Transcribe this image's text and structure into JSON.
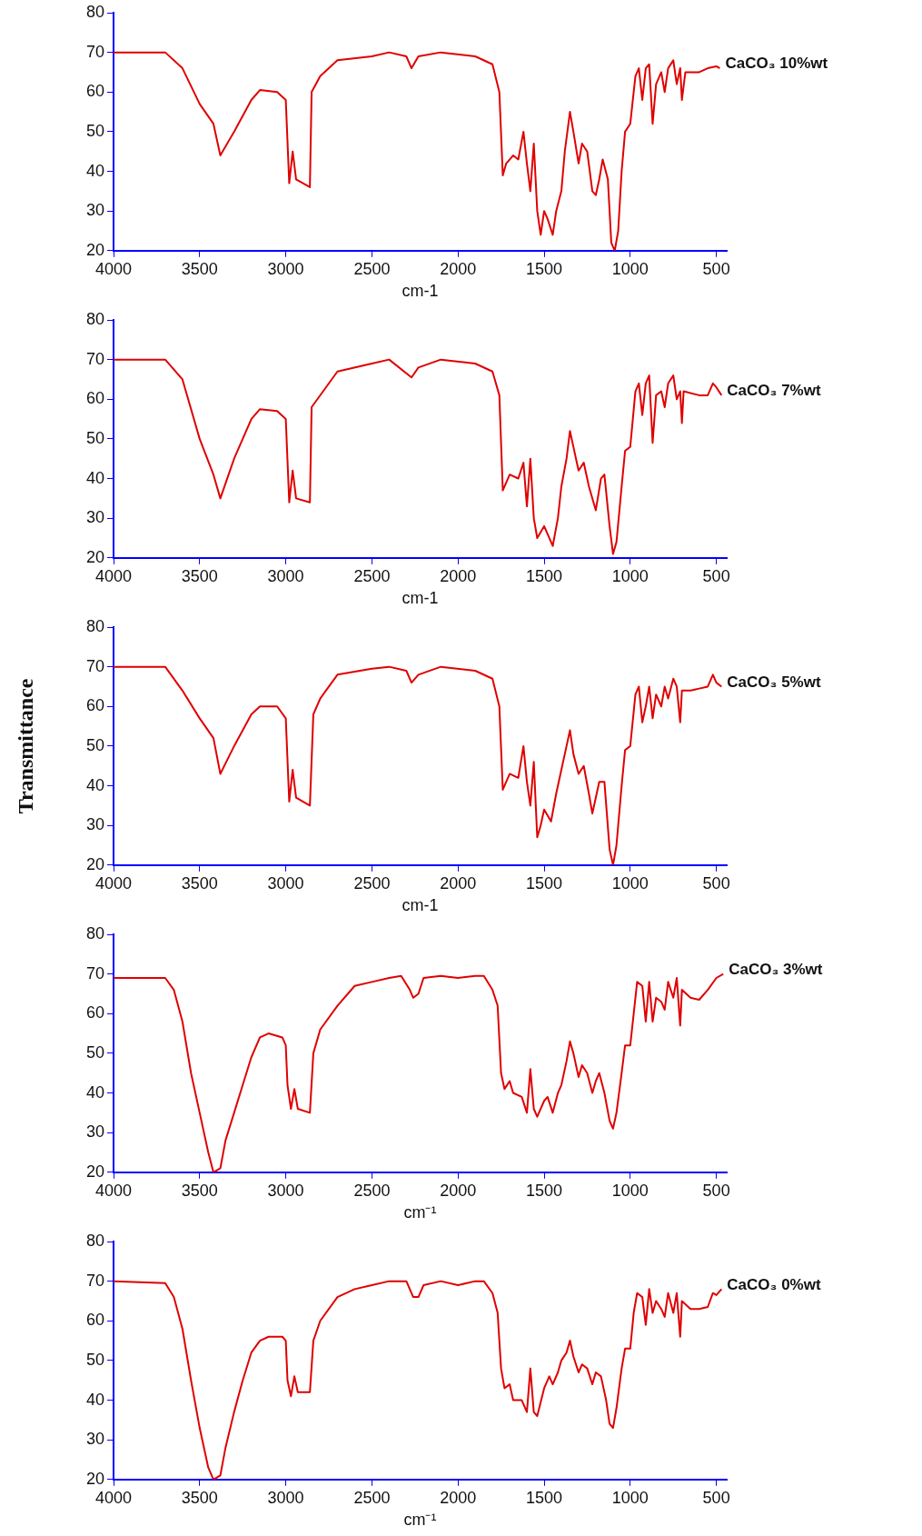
{
  "chart_data": [
    {
      "type": "line",
      "xlabel": "cm-1",
      "xlim": [
        4000,
        440
      ],
      "xticks": [
        4000,
        3500,
        3000,
        2500,
        2000,
        1500,
        1000,
        500
      ],
      "ylim": [
        20,
        80
      ],
      "yticks": [
        20,
        30,
        40,
        50,
        60,
        70,
        80
      ],
      "grid": false,
      "series": [
        {
          "name": "CaCO₃ 10%wt",
          "color": "#e00000",
          "x": [
            4000,
            3700,
            3600,
            3500,
            3420,
            3380,
            3300,
            3200,
            3150,
            3050,
            3000,
            2980,
            2960,
            2940,
            2900,
            2860,
            2850,
            2800,
            2700,
            2500,
            2400,
            2300,
            2270,
            2230,
            2100,
            1900,
            1800,
            1760,
            1740,
            1720,
            1680,
            1650,
            1620,
            1600,
            1580,
            1560,
            1540,
            1520,
            1500,
            1480,
            1450,
            1430,
            1400,
            1380,
            1350,
            1330,
            1300,
            1280,
            1250,
            1220,
            1200,
            1180,
            1160,
            1130,
            1110,
            1090,
            1070,
            1050,
            1030,
            1000,
            970,
            950,
            930,
            910,
            890,
            870,
            850,
            820,
            800,
            780,
            750,
            730,
            710,
            700,
            680,
            600,
            550,
            500,
            480
          ],
          "values": [
            70,
            70,
            66,
            57,
            52,
            44,
            50,
            58,
            60.5,
            60,
            58,
            37,
            45,
            38,
            37,
            36,
            60,
            64,
            68,
            69,
            70,
            69,
            66,
            69,
            70,
            69,
            67,
            60,
            39,
            42,
            44,
            43,
            50,
            42,
            35,
            47,
            30,
            24,
            30,
            28,
            24,
            30,
            35,
            45,
            55,
            50,
            42,
            47,
            45,
            35,
            34,
            38,
            43,
            38,
            22,
            20,
            25,
            40,
            50,
            52,
            64,
            66,
            58,
            66,
            67,
            52,
            62,
            65,
            60,
            66,
            68,
            62,
            66,
            58,
            65,
            65,
            66,
            66.5,
            66
          ]
        }
      ]
    },
    {
      "type": "line",
      "xlabel": "cm-1",
      "xlim": [
        4000,
        440
      ],
      "xticks": [
        4000,
        3500,
        3000,
        2500,
        2000,
        1500,
        1000,
        500
      ],
      "ylim": [
        20,
        80
      ],
      "yticks": [
        20,
        30,
        40,
        50,
        60,
        70,
        80
      ],
      "grid": false,
      "series": [
        {
          "name": "CaCO₃ 7%wt",
          "color": "#e00000",
          "x": [
            4000,
            3700,
            3600,
            3500,
            3420,
            3380,
            3300,
            3200,
            3150,
            3050,
            3000,
            2980,
            2960,
            2940,
            2860,
            2850,
            2700,
            2500,
            2400,
            2270,
            2230,
            2100,
            1900,
            1800,
            1760,
            1740,
            1700,
            1650,
            1620,
            1600,
            1580,
            1560,
            1540,
            1500,
            1450,
            1420,
            1400,
            1370,
            1350,
            1330,
            1300,
            1270,
            1240,
            1200,
            1170,
            1150,
            1120,
            1100,
            1080,
            1050,
            1030,
            1000,
            970,
            950,
            930,
            910,
            890,
            870,
            850,
            820,
            800,
            780,
            750,
            730,
            710,
            700,
            690,
            600,
            550,
            520,
            500,
            470
          ],
          "values": [
            70,
            70,
            65,
            50,
            41,
            35,
            45,
            55,
            57.5,
            57,
            55,
            34,
            42,
            35,
            34,
            58,
            67,
            69,
            70,
            65.5,
            68,
            70,
            69,
            67,
            61,
            37,
            41,
            40,
            44,
            33,
            45,
            30,
            25,
            28,
            23,
            30,
            38,
            45,
            52,
            48,
            42,
            44,
            38,
            32,
            40,
            41,
            28,
            21,
            24,
            38,
            47,
            48,
            62,
            64,
            56,
            64,
            66,
            49,
            61,
            62,
            58,
            64,
            66,
            60,
            62,
            54,
            62,
            61,
            61,
            64,
            63,
            61
          ]
        }
      ]
    },
    {
      "type": "line",
      "xlabel": "cm-1",
      "ylabel": "Transmittance",
      "xlim": [
        4000,
        440
      ],
      "xticks": [
        4000,
        3500,
        3000,
        2500,
        2000,
        1500,
        1000,
        500
      ],
      "ylim": [
        20,
        80
      ],
      "yticks": [
        20,
        30,
        40,
        50,
        60,
        70,
        80
      ],
      "grid": false,
      "series": [
        {
          "name": "CaCO₃ 5%wt",
          "color": "#e00000",
          "x": [
            4000,
            3700,
            3600,
            3500,
            3420,
            3380,
            3300,
            3200,
            3150,
            3050,
            3000,
            2980,
            2960,
            2940,
            2860,
            2840,
            2800,
            2700,
            2500,
            2400,
            2300,
            2270,
            2230,
            2100,
            1900,
            1800,
            1760,
            1740,
            1700,
            1650,
            1620,
            1600,
            1580,
            1560,
            1540,
            1520,
            1500,
            1460,
            1430,
            1400,
            1370,
            1350,
            1330,
            1300,
            1270,
            1240,
            1220,
            1180,
            1150,
            1120,
            1100,
            1080,
            1050,
            1030,
            1000,
            970,
            950,
            930,
            910,
            890,
            870,
            850,
            820,
            800,
            780,
            750,
            730,
            710,
            700,
            650,
            600,
            550,
            520,
            500,
            470
          ],
          "values": [
            70,
            70,
            64,
            57,
            52,
            43,
            50,
            58,
            60,
            60,
            57,
            36,
            44,
            37,
            35,
            58,
            62,
            68,
            69.5,
            70,
            69,
            66,
            68,
            70,
            69,
            67,
            60,
            39,
            43,
            42,
            50,
            41,
            35,
            46,
            27,
            30,
            34,
            31,
            38,
            44,
            50,
            54,
            48,
            43,
            45,
            38,
            33,
            41,
            41,
            24,
            20,
            25,
            40,
            49,
            50,
            63,
            65,
            56,
            60,
            65,
            57,
            63,
            60,
            65,
            62,
            67,
            65,
            56,
            64,
            64,
            64.5,
            65,
            68,
            66,
            65
          ]
        }
      ]
    },
    {
      "type": "line",
      "xlabel": "cm⁻¹",
      "xlim": [
        4000,
        440
      ],
      "xticks": [
        4000,
        3500,
        3000,
        2500,
        2000,
        1500,
        1000,
        500
      ],
      "ylim": [
        20,
        80
      ],
      "yticks": [
        20,
        30,
        40,
        50,
        60,
        70,
        80
      ],
      "grid": false,
      "series": [
        {
          "name": "CaCO₃ 3%wt",
          "color": "#e00000",
          "x": [
            4000,
            3700,
            3650,
            3600,
            3550,
            3500,
            3450,
            3420,
            3380,
            3350,
            3300,
            3250,
            3200,
            3150,
            3100,
            3020,
            3000,
            2990,
            2970,
            2950,
            2930,
            2860,
            2840,
            2800,
            2700,
            2600,
            2500,
            2400,
            2330,
            2280,
            2260,
            2230,
            2200,
            2100,
            2000,
            1900,
            1850,
            1800,
            1770,
            1750,
            1730,
            1700,
            1680,
            1630,
            1600,
            1580,
            1560,
            1540,
            1500,
            1480,
            1450,
            1420,
            1400,
            1370,
            1350,
            1330,
            1300,
            1280,
            1250,
            1220,
            1200,
            1180,
            1150,
            1120,
            1100,
            1080,
            1050,
            1030,
            1000,
            980,
            960,
            930,
            910,
            890,
            870,
            850,
            820,
            800,
            780,
            750,
            730,
            710,
            700,
            650,
            600,
            550,
            500,
            460
          ],
          "values": [
            69,
            69,
            66,
            58,
            45,
            35,
            25,
            20,
            21,
            28,
            35,
            42,
            49,
            54,
            55,
            54,
            52,
            42,
            36,
            41,
            36,
            35,
            50,
            56,
            62,
            67,
            68,
            69,
            69.5,
            66,
            64,
            65,
            69,
            69.5,
            69,
            69.5,
            69.5,
            66,
            62,
            45,
            41,
            43,
            40,
            39,
            35,
            46,
            36,
            34,
            38,
            39,
            35,
            40,
            42,
            48,
            53,
            50,
            44,
            47,
            45,
            40,
            43,
            45,
            40,
            33,
            31,
            35,
            45,
            52,
            52,
            60,
            68,
            67,
            58,
            68,
            58,
            64,
            63,
            61,
            68,
            64,
            69,
            57,
            66,
            64,
            63.5,
            66,
            69,
            70
          ]
        }
      ]
    },
    {
      "type": "line",
      "xlabel": "cm⁻¹",
      "xlim": [
        4000,
        440
      ],
      "xticks": [
        4000,
        3500,
        3000,
        2500,
        2000,
        1500,
        1000,
        500
      ],
      "ylim": [
        20,
        80
      ],
      "yticks": [
        20,
        30,
        40,
        50,
        60,
        70,
        80
      ],
      "grid": false,
      "series": [
        {
          "name": "CaCO₃ 0%wt",
          "color": "#e00000",
          "x": [
            4000,
            3700,
            3650,
            3600,
            3550,
            3500,
            3450,
            3420,
            3380,
            3350,
            3300,
            3250,
            3200,
            3150,
            3100,
            3020,
            3000,
            2990,
            2970,
            2950,
            2930,
            2860,
            2840,
            2800,
            2700,
            2600,
            2500,
            2400,
            2300,
            2260,
            2230,
            2200,
            2100,
            2000,
            1900,
            1850,
            1800,
            1770,
            1750,
            1730,
            1700,
            1680,
            1630,
            1600,
            1580,
            1560,
            1540,
            1500,
            1470,
            1450,
            1420,
            1400,
            1370,
            1350,
            1330,
            1300,
            1280,
            1250,
            1220,
            1200,
            1170,
            1140,
            1120,
            1100,
            1080,
            1050,
            1030,
            1000,
            980,
            960,
            930,
            910,
            890,
            870,
            850,
            820,
            800,
            780,
            750,
            730,
            710,
            700,
            650,
            600,
            550,
            520,
            500,
            470
          ],
          "values": [
            70,
            69.5,
            66,
            58,
            45,
            33,
            23,
            20,
            21,
            28,
            37,
            45,
            52,
            55,
            56,
            56,
            55,
            45,
            41,
            46,
            42,
            42,
            55,
            60,
            66,
            68,
            69,
            70,
            70,
            66,
            66,
            69,
            70,
            69,
            70,
            70,
            67,
            62,
            48,
            43,
            44,
            40,
            40,
            37,
            48,
            37,
            36,
            43,
            46,
            44,
            47,
            50,
            52,
            55,
            51,
            47,
            49,
            48,
            44,
            47,
            46,
            40,
            34,
            33,
            38,
            48,
            53,
            53,
            62,
            67,
            66,
            59,
            68,
            62,
            65,
            63,
            61,
            67,
            62,
            67,
            56,
            65,
            63,
            63,
            63.5,
            67,
            66.5,
            68
          ]
        }
      ]
    }
  ]
}
